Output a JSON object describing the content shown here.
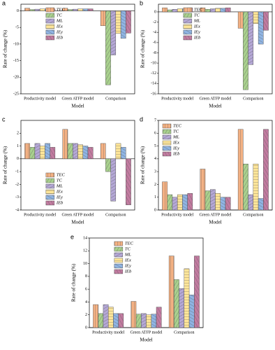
{
  "chart_data": [
    {
      "type": "bar",
      "label": "a",
      "ylabel": "Rate of change (%)",
      "xlabel": "Model",
      "categories": [
        "Productivity model",
        "Green ATFP model",
        "Comparison"
      ],
      "series": [
        {
          "name": "TEC",
          "color": "#f4b183",
          "values": [
            0.8,
            0.8,
            -4.5
          ]
        },
        {
          "name": "TC",
          "color": "#a9d18e",
          "values": [
            0.4,
            0.4,
            -22.3
          ]
        },
        {
          "name": "ML",
          "color": "#b4a7d6",
          "values": [
            0.5,
            0.5,
            -13.3
          ]
        },
        {
          "name": "IEx",
          "color": "#ffe699",
          "values": [
            0.6,
            0.6,
            -6.8
          ]
        },
        {
          "name": "IEy",
          "color": "#8fb4e3",
          "values": [
            0.6,
            0.6,
            -8.3
          ]
        },
        {
          "name": "IEb",
          "color": "#c27ba0",
          "values": [
            0.6,
            0.6,
            -6.7
          ]
        }
      ],
      "ylim": [
        -25,
        2
      ],
      "yticks": [
        -25,
        -20,
        -15,
        -10,
        -5,
        0
      ],
      "legend": "upper center"
    },
    {
      "type": "bar",
      "label": "b",
      "ylabel": "Rate of change (%)",
      "xlabel": "Model",
      "categories": [
        "Productivity model",
        "Green ATFP model",
        "Comparison"
      ],
      "series": [
        {
          "name": "TEC",
          "color": "#f4b183",
          "values": [
            0.8,
            0.8,
            -3.2
          ]
        },
        {
          "name": "TC",
          "color": "#a9d18e",
          "values": [
            0.4,
            0.5,
            -15.2
          ]
        },
        {
          "name": "ML",
          "color": "#b4a7d6",
          "values": [
            0.5,
            0.6,
            -10.3
          ]
        },
        {
          "name": "IEx",
          "color": "#ffe699",
          "values": [
            0.6,
            0.7,
            -2.3
          ]
        },
        {
          "name": "IEy",
          "color": "#8fb4e3",
          "values": [
            0.6,
            0.7,
            -6.3
          ]
        },
        {
          "name": "IEb",
          "color": "#c27ba0",
          "values": [
            0.8,
            0.8,
            -3.6
          ]
        }
      ],
      "ylim": [
        -16,
        1.5
      ],
      "yticks": [
        -16,
        -14,
        -12,
        -10,
        -8,
        -6,
        -4,
        -2,
        0
      ],
      "legend": "upper center"
    },
    {
      "type": "bar",
      "label": "c",
      "ylabel": "Rate of change (%)",
      "xlabel": "Model",
      "categories": [
        "Productivity model",
        "Green ATFP model",
        "Comparison"
      ],
      "series": [
        {
          "name": "TEC",
          "color": "#f4b183",
          "values": [
            1.2,
            2.3,
            1.2
          ]
        },
        {
          "name": "TC",
          "color": "#a9d18e",
          "values": [
            0.9,
            1.2,
            -1.0
          ]
        },
        {
          "name": "ML",
          "color": "#b4a7d6",
          "values": [
            1.2,
            1.2,
            -3.3
          ]
        },
        {
          "name": "IEx",
          "color": "#ffe699",
          "values": [
            1.0,
            1.1,
            1.2
          ]
        },
        {
          "name": "IEy",
          "color": "#8fb4e3",
          "values": [
            1.2,
            1.0,
            0.9
          ]
        },
        {
          "name": "IEb",
          "color": "#c27ba0",
          "values": [
            0.9,
            0.9,
            -3.6
          ]
        }
      ],
      "ylim": [
        -4,
        3
      ],
      "yticks": [
        -4,
        -3,
        -2,
        -1,
        0,
        1,
        2
      ],
      "legend": "lower center"
    },
    {
      "type": "bar",
      "label": "d",
      "ylabel": "Rate of change (%)",
      "xlabel": "Model",
      "categories": [
        "Productivity model",
        "Green ATFP model",
        "Comparison"
      ],
      "series": [
        {
          "name": "TEC",
          "color": "#f4b183",
          "values": [
            2.2,
            3.2,
            6.3
          ]
        },
        {
          "name": "TC",
          "color": "#a9d18e",
          "values": [
            1.2,
            1.5,
            3.6
          ]
        },
        {
          "name": "ML",
          "color": "#b4a7d6",
          "values": [
            1.0,
            1.6,
            1.2
          ]
        },
        {
          "name": "IEx",
          "color": "#ffe699",
          "values": [
            1.2,
            1.3,
            3.6
          ]
        },
        {
          "name": "IEy",
          "color": "#8fb4e3",
          "values": [
            1.2,
            1.0,
            0.9
          ]
        },
        {
          "name": "IEb",
          "color": "#c27ba0",
          "values": [
            1.3,
            1.0,
            6.3
          ]
        }
      ],
      "ylim": [
        0,
        7
      ],
      "yticks": [
        0,
        1,
        2,
        3,
        4,
        5,
        6,
        7
      ],
      "legend": "upper left"
    },
    {
      "type": "bar",
      "label": "e",
      "ylabel": "Rate of change (%)",
      "xlabel": "Model",
      "categories": [
        "Productivity model",
        "Green ATFP model",
        "Comparison"
      ],
      "series": [
        {
          "name": "TEC",
          "color": "#f4b183",
          "values": [
            3.6,
            4.1,
            11.2
          ]
        },
        {
          "name": "TC",
          "color": "#a9d18e",
          "values": [
            2.2,
            2.1,
            7.5
          ]
        },
        {
          "name": "ML",
          "color": "#b4a7d6",
          "values": [
            3.6,
            2.2,
            6.1
          ]
        },
        {
          "name": "IEx",
          "color": "#ffe699",
          "values": [
            3.2,
            2.0,
            9.2
          ]
        },
        {
          "name": "IEy",
          "color": "#8fb4e3",
          "values": [
            2.2,
            2.1,
            5.1
          ]
        },
        {
          "name": "IEb",
          "color": "#c27ba0",
          "values": [
            2.2,
            3.2,
            11.2
          ]
        }
      ],
      "ylim": [
        0,
        14
      ],
      "yticks": [
        0,
        2,
        4,
        6,
        8,
        10,
        12,
        14
      ],
      "legend": "upper center"
    }
  ]
}
